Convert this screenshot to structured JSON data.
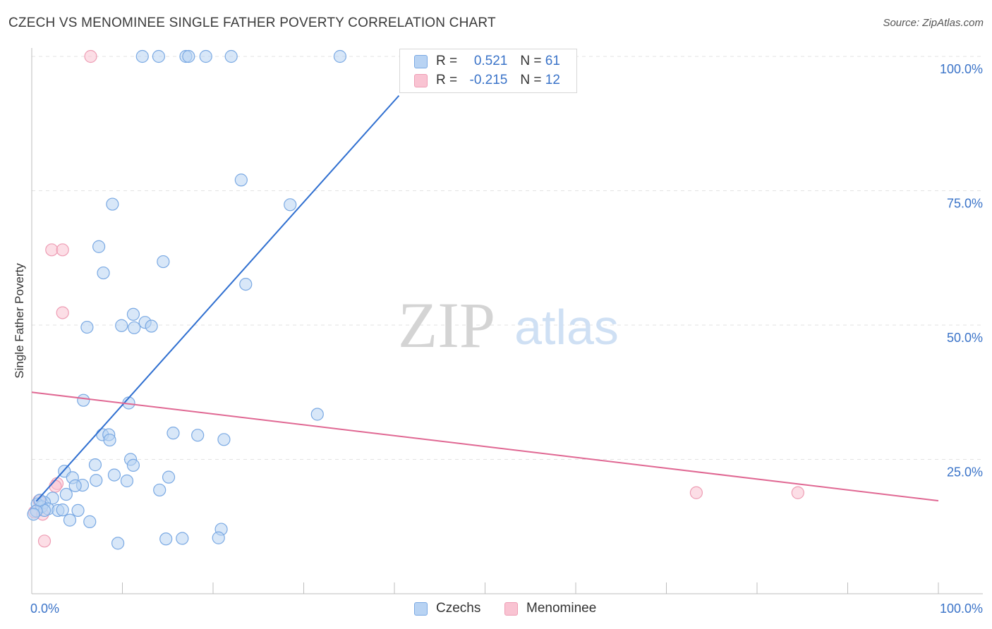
{
  "title": "CZECH VS MENOMINEE SINGLE FATHER POVERTY CORRELATION CHART",
  "source": "Source: ZipAtlas.com",
  "watermark": {
    "zip": "ZIP",
    "atlas": "atlas"
  },
  "legend": {
    "czechs": {
      "r_label": "R = ",
      "r_value": "0.521",
      "n_label": "N = ",
      "n_value": "61"
    },
    "menominee": {
      "r_label": "R = ",
      "r_value": "-0.215",
      "n_label": "N = ",
      "n_value": "12"
    }
  },
  "colors": {
    "blue_fill": "#b8d3f3",
    "blue_stroke": "#7aa9e3",
    "blue_line": "#2f6fd0",
    "pink_fill": "#f9c3d2",
    "pink_stroke": "#ee9db4",
    "pink_line": "#e06893",
    "tick_text": "#3a73c8"
  },
  "chart_data": {
    "type": "scatter",
    "title": "CZECH VS MENOMINEE SINGLE FATHER POVERTY CORRELATION CHART",
    "xlabel": "",
    "ylabel": "Single Father Poverty",
    "xlim": [
      0,
      100
    ],
    "ylim": [
      0,
      104
    ],
    "x_tick_labels": [
      "0.0%",
      "100.0%"
    ],
    "y_ticks": [
      25,
      50,
      75,
      100
    ],
    "y_tick_labels": [
      "25.0%",
      "50.0%",
      "75.0%",
      "100.0%"
    ],
    "legend_placement": "top-center",
    "series": [
      {
        "name": "Czechs",
        "r": 0.521,
        "n": 61,
        "trendline": {
          "x": [
            0.5,
            40.5
          ],
          "y": [
            17.2,
            92.7
          ]
        },
        "points": [
          [
            12.2,
            100
          ],
          [
            14.0,
            100
          ],
          [
            17.0,
            100
          ],
          [
            17.3,
            100
          ],
          [
            19.2,
            100
          ],
          [
            22.0,
            100
          ],
          [
            34.0,
            100
          ],
          [
            23.1,
            77.0
          ],
          [
            28.5,
            72.4
          ],
          [
            8.9,
            72.5
          ],
          [
            7.4,
            64.6
          ],
          [
            14.5,
            61.8
          ],
          [
            7.9,
            59.7
          ],
          [
            23.6,
            57.6
          ],
          [
            11.2,
            52.0
          ],
          [
            12.5,
            50.5
          ],
          [
            13.2,
            49.8
          ],
          [
            9.9,
            49.9
          ],
          [
            6.1,
            49.6
          ],
          [
            11.3,
            49.5
          ],
          [
            31.5,
            33.4
          ],
          [
            5.7,
            36.0
          ],
          [
            10.7,
            35.5
          ],
          [
            7.8,
            29.6
          ],
          [
            8.5,
            29.6
          ],
          [
            15.6,
            29.9
          ],
          [
            18.3,
            29.5
          ],
          [
            21.2,
            28.7
          ],
          [
            8.6,
            28.6
          ],
          [
            10.9,
            25.0
          ],
          [
            11.2,
            23.9
          ],
          [
            7.0,
            24.0
          ],
          [
            3.6,
            22.8
          ],
          [
            4.5,
            21.6
          ],
          [
            15.1,
            21.7
          ],
          [
            7.1,
            21.1
          ],
          [
            10.5,
            21.0
          ],
          [
            9.1,
            22.1
          ],
          [
            5.6,
            20.2
          ],
          [
            4.8,
            20.1
          ],
          [
            14.1,
            19.3
          ],
          [
            3.8,
            18.5
          ],
          [
            2.3,
            17.8
          ],
          [
            1.4,
            17.0
          ],
          [
            0.6,
            16.7
          ],
          [
            1.1,
            16.2
          ],
          [
            1.8,
            15.8
          ],
          [
            2.9,
            15.5
          ],
          [
            1.4,
            15.5
          ],
          [
            0.5,
            15.4
          ],
          [
            3.4,
            15.6
          ],
          [
            5.1,
            15.5
          ],
          [
            4.2,
            13.7
          ],
          [
            6.4,
            13.4
          ],
          [
            0.2,
            14.8
          ],
          [
            20.9,
            12.0
          ],
          [
            9.5,
            9.4
          ],
          [
            14.8,
            10.2
          ],
          [
            16.6,
            10.3
          ],
          [
            20.6,
            10.4
          ],
          [
            0.9,
            17.4
          ]
        ]
      },
      {
        "name": "Menominee",
        "r": -0.215,
        "n": 12,
        "trendline": {
          "x": [
            0,
            100
          ],
          "y": [
            37.5,
            17.3
          ]
        },
        "points": [
          [
            6.5,
            100
          ],
          [
            2.2,
            64.0
          ],
          [
            3.4,
            64.0
          ],
          [
            3.4,
            52.3
          ],
          [
            2.8,
            20.5
          ],
          [
            2.6,
            20.0
          ],
          [
            73.3,
            18.8
          ],
          [
            84.5,
            18.8
          ],
          [
            0.8,
            17.3
          ],
          [
            0.3,
            15.2
          ],
          [
            1.2,
            14.8
          ],
          [
            1.4,
            9.8
          ]
        ]
      }
    ]
  }
}
